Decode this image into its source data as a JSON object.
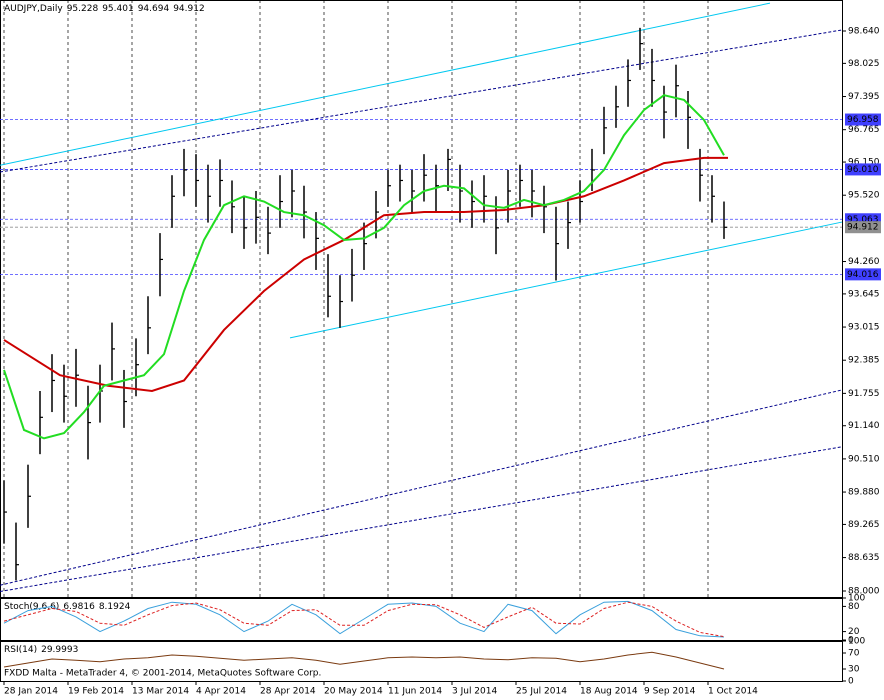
{
  "chart_data": [
    {
      "type": "ohlc",
      "title": "AUDJPY,Daily",
      "readout": [
        95.228,
        95.401,
        94.694,
        94.912
      ],
      "xlim": [
        -1,
        209.5
      ],
      "ylim": [
        87.886,
        99.229
      ],
      "xticks": [
        {
          "value": 0,
          "label": "28 Jan 2014"
        },
        {
          "value": 16,
          "label": "19 Feb 2014"
        },
        {
          "value": 32,
          "label": "13 Mar 2014"
        },
        {
          "value": 48,
          "label": "4 Apr 2014"
        },
        {
          "value": 64,
          "label": "28 Apr 2014"
        },
        {
          "value": 80,
          "label": "20 May 2014"
        },
        {
          "value": 96,
          "label": "11 Jun 2014"
        },
        {
          "value": 112,
          "label": "3 Jul 2014"
        },
        {
          "value": 128,
          "label": "25 Jul 2014"
        },
        {
          "value": 144,
          "label": "18 Aug 2014"
        },
        {
          "value": 160,
          "label": "9 Sep 2014"
        },
        {
          "value": 176,
          "label": "1 Oct 2014"
        }
      ],
      "yticks": [
        {
          "value": 98.64,
          "label": "98.640"
        },
        98.025,
        97.395,
        96.765,
        {
          "value": 96.15,
          "label": "96.150"
        },
        {
          "value": 95.52,
          "label": "95.520"
        },
        {
          "value": 94.26,
          "label": "94.260"
        },
        93.645,
        93.015,
        92.385,
        91.755,
        {
          "value": 91.14,
          "label": "91.140"
        },
        {
          "value": 90.51,
          "label": "90.510"
        },
        {
          "value": 89.88,
          "label": "89.880"
        },
        89.265,
        88.635,
        {
          "value": 88,
          "label": "88.000"
        }
      ],
      "grid": true,
      "color": "#000000",
      "x": [
        0,
        3,
        6,
        9,
        12,
        15,
        18,
        21,
        24,
        27,
        30,
        33,
        36,
        39,
        42,
        45,
        48,
        51,
        54,
        57,
        60,
        63,
        66,
        69,
        72,
        75,
        78,
        81,
        84,
        87,
        90,
        93,
        96,
        99,
        102,
        105,
        108,
        111,
        114,
        117,
        120,
        123,
        126,
        129,
        132,
        135,
        138,
        141,
        144,
        147,
        150,
        153,
        156,
        159,
        162,
        165,
        168,
        171,
        174,
        177,
        180
      ],
      "high": [
        90.1,
        89.3,
        90.4,
        91.8,
        92.5,
        92.3,
        92.6,
        91.9,
        92.3,
        93.1,
        92.2,
        92.8,
        93.6,
        94.8,
        95.9,
        96.4,
        96.3,
        96.1,
        96.2,
        95.8,
        95.5,
        95.6,
        95.3,
        95.9,
        96.0,
        95.7,
        95.2,
        94.4,
        94.0,
        94.5,
        95.0,
        95.6,
        96.0,
        96.1,
        96.0,
        96.3,
        96.1,
        96.4,
        96.1,
        95.8,
        95.9,
        95.5,
        96.0,
        96.1,
        96.0,
        95.7,
        95.3,
        95.4,
        95.8,
        96.4,
        97.2,
        97.6,
        98.1,
        98.7,
        98.3,
        97.6,
        98.0,
        97.5,
        96.4,
        95.9,
        95.4
      ],
      "low": [
        88.9,
        88.2,
        89.2,
        90.6,
        91.4,
        91.2,
        91.5,
        90.5,
        91.2,
        92.0,
        91.1,
        91.7,
        92.5,
        93.6,
        94.9,
        95.5,
        95.3,
        95.0,
        95.3,
        94.8,
        94.5,
        94.6,
        94.4,
        94.9,
        95.1,
        94.7,
        94.1,
        93.2,
        93.0,
        93.5,
        94.1,
        94.7,
        95.3,
        95.4,
        95.2,
        95.4,
        95.2,
        95.6,
        95.0,
        94.9,
        95.0,
        94.4,
        95.0,
        95.3,
        95.1,
        94.8,
        93.9,
        94.5,
        95.0,
        95.6,
        96.3,
        96.8,
        97.2,
        97.9,
        97.2,
        96.6,
        97.0,
        96.4,
        95.4,
        95.0,
        94.69
      ],
      "close": [
        89.5,
        88.5,
        89.8,
        91.3,
        92.0,
        91.7,
        92.1,
        91.2,
        91.8,
        92.6,
        91.6,
        92.3,
        93.0,
        94.3,
        95.5,
        96.0,
        95.8,
        95.5,
        95.8,
        95.3,
        94.9,
        95.1,
        94.8,
        95.4,
        95.6,
        95.2,
        94.7,
        93.6,
        93.5,
        94.0,
        94.6,
        95.2,
        95.7,
        95.8,
        95.6,
        95.9,
        95.7,
        96.2,
        95.6,
        95.4,
        95.5,
        94.9,
        95.6,
        95.8,
        95.6,
        95.3,
        94.6,
        95.0,
        95.4,
        96.0,
        96.8,
        97.2,
        97.7,
        98.4,
        97.7,
        97.1,
        97.6,
        97.0,
        95.9,
        95.5,
        94.91
      ],
      "overlays": [
        {
          "color": "#cc0000",
          "x": [
            0,
            14,
            26,
            37,
            45,
            55,
            65,
            75,
            85,
            95,
            105,
            115,
            125,
            135,
            145,
            155,
            165,
            175,
            181
          ],
          "values": [
            92.77,
            92.1,
            91.9,
            91.8,
            92.0,
            92.96,
            93.7,
            94.3,
            94.67,
            95.14,
            95.2,
            95.2,
            95.24,
            95.33,
            95.5,
            95.8,
            96.13,
            96.23,
            96.23
          ]
        },
        {
          "color": "#22dd22",
          "x": [
            0,
            5,
            10,
            15,
            20,
            25,
            30,
            35,
            40,
            45,
            50,
            55,
            60,
            65,
            70,
            75,
            80,
            85,
            90,
            95,
            100,
            105,
            110,
            115,
            120,
            125,
            130,
            135,
            140,
            145,
            150,
            155,
            160,
            165,
            170,
            175,
            180
          ],
          "values": [
            92.2,
            91.06,
            90.9,
            91.0,
            91.4,
            91.9,
            92.0,
            92.1,
            92.5,
            93.7,
            94.67,
            95.33,
            95.5,
            95.4,
            95.2,
            95.14,
            94.95,
            94.67,
            94.7,
            94.9,
            95.33,
            95.6,
            95.7,
            95.65,
            95.33,
            95.28,
            95.43,
            95.33,
            95.43,
            95.6,
            96.0,
            96.66,
            97.14,
            97.42,
            97.33,
            96.95,
            96.28
          ]
        }
      ],
      "trendlines": [
        {
          "color": "#00c8f0",
          "dashed": false,
          "x": [
            -1,
            191.5
          ],
          "values": [
            96.09,
            99.17
          ]
        },
        {
          "color": "#00c8f0",
          "dashed": false,
          "x": [
            71.5,
            209.5
          ],
          "values": [
            92.81,
            95.01
          ]
        },
        {
          "color": "#00008b",
          "dashed": true,
          "x": [
            -1,
            209.5
          ],
          "values": [
            95.96,
            98.66
          ]
        },
        {
          "color": "#00008b",
          "dashed": true,
          "x": [
            -1,
            209.5
          ],
          "values": [
            88.11,
            91.82
          ]
        },
        {
          "color": "#00008b",
          "dashed": true,
          "x": [
            -1,
            209.5
          ],
          "values": [
            87.99,
            90.74
          ]
        }
      ],
      "levels": [
        {
          "value": 96.958,
          "color": "#4040ff"
        },
        {
          "value": {
            "value": 96.01,
            "label": "96.010"
          },
          "color": "#4040ff"
        },
        {
          "value": 95.063,
          "color": "#4040ff"
        },
        {
          "value": 94.016,
          "color": "#4040ff"
        },
        {
          "value": 94.912,
          "color": "#909090"
        }
      ]
    },
    {
      "type": "line",
      "title": "Stoch(9,6,6)",
      "readout": [
        6.9816,
        8.1924
      ],
      "ylim": [
        0,
        100
      ],
      "yticks": [
        100,
        80,
        20,
        0
      ],
      "xlim": [
        -1,
        209.5
      ],
      "x": [
        0,
        6,
        12,
        18,
        24,
        30,
        36,
        42,
        48,
        54,
        60,
        66,
        72,
        78,
        84,
        90,
        96,
        102,
        108,
        114,
        120,
        126,
        132,
        138,
        144,
        150,
        156,
        162,
        168,
        174,
        180
      ],
      "series": [
        {
          "color": "#3aa0dc",
          "dashed": false,
          "values": [
            40,
            70,
            80,
            55,
            20,
            45,
            75,
            90,
            85,
            60,
            20,
            45,
            85,
            60,
            15,
            50,
            85,
            88,
            80,
            40,
            20,
            85,
            70,
            15,
            60,
            90,
            92,
            70,
            25,
            10,
            7
          ]
        },
        {
          "color": "#dd2222",
          "dashed": true,
          "values": [
            45,
            60,
            75,
            68,
            40,
            35,
            60,
            82,
            88,
            72,
            40,
            35,
            70,
            72,
            35,
            35,
            70,
            85,
            84,
            60,
            30,
            55,
            78,
            40,
            38,
            75,
            90,
            80,
            45,
            18,
            8
          ]
        }
      ]
    },
    {
      "type": "line",
      "title": "RSI(14)",
      "readout": [
        29.9993
      ],
      "ylim": [
        0,
        100
      ],
      "yticks": [
        100,
        70,
        30,
        0
      ],
      "xlim": [
        -1,
        209.5
      ],
      "footer": "FXDD Malta - MetaTrader 4, © 2001-2014, MetaQuotes Software Corp.",
      "x": [
        0,
        6,
        12,
        18,
        24,
        30,
        36,
        42,
        48,
        54,
        60,
        66,
        72,
        78,
        84,
        90,
        96,
        102,
        108,
        114,
        120,
        126,
        132,
        138,
        144,
        150,
        156,
        162,
        168,
        174,
        180
      ],
      "series": [
        {
          "color": "#7a3a10",
          "dashed": false,
          "values": [
            35,
            45,
            55,
            52,
            48,
            55,
            58,
            65,
            62,
            57,
            52,
            55,
            58,
            52,
            42,
            50,
            58,
            60,
            58,
            60,
            55,
            53,
            58,
            57,
            48,
            55,
            65,
            72,
            60,
            45,
            30
          ]
        }
      ]
    }
  ]
}
